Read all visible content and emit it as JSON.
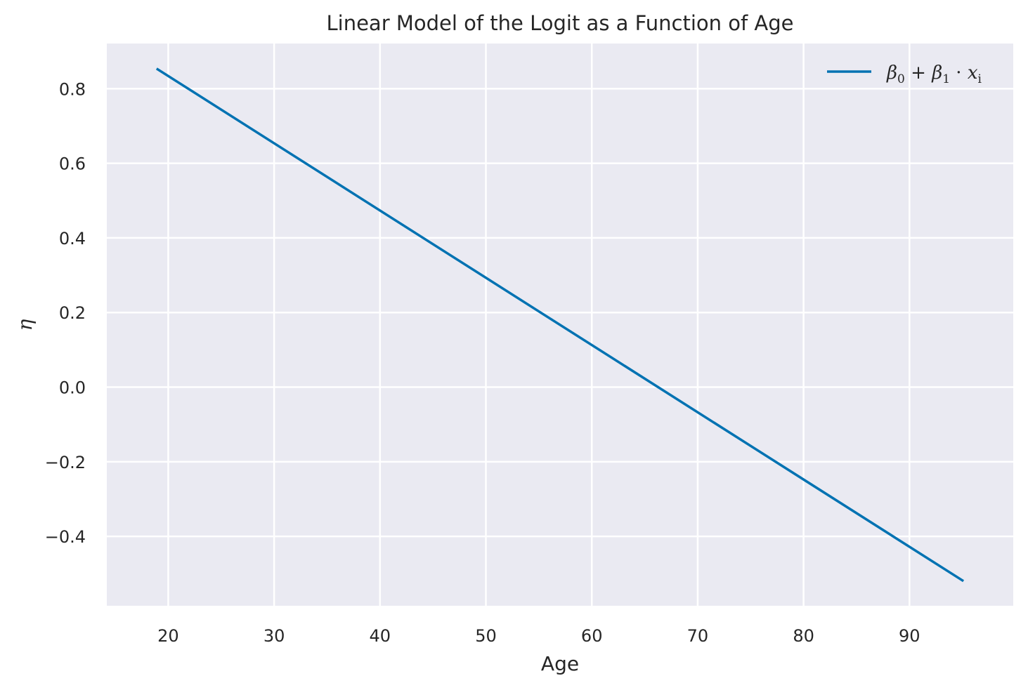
{
  "chart_data": {
    "type": "line",
    "title": "Linear Model of the Logit as a Function of Age",
    "xlabel": "Age",
    "ylabel": "η",
    "xlim": [
      14.2,
      99.8
    ],
    "ylim": [
      -0.586,
      0.921
    ],
    "x_ticks": [
      20,
      30,
      40,
      50,
      60,
      70,
      80,
      90
    ],
    "x_tick_labels": [
      "20",
      "30",
      "40",
      "50",
      "60",
      "70",
      "80",
      "90"
    ],
    "y_ticks": [
      0.8,
      0.6,
      0.4,
      0.2,
      0.0,
      -0.2,
      -0.4
    ],
    "y_tick_labels": [
      "0.8",
      "0.6",
      "0.4",
      "0.2",
      "0.0",
      "−0.2",
      "−0.4"
    ],
    "grid": true,
    "legend_position": "top-right",
    "series": [
      {
        "name": "β0 + β1 · xi",
        "color": "#0072B2",
        "x": [
          19,
          95
        ],
        "y": [
          0.852,
          -0.518
        ]
      }
    ]
  },
  "legend": {
    "beta": "β",
    "sub0": "0",
    "plus": " + ",
    "sub1": "1",
    "dot": " · ",
    "x": "x",
    "subi": "i"
  },
  "colors": {
    "plot_background": "#EAEAF2",
    "grid": "#FFFFFF",
    "line": "#0072B2",
    "text": "#262626"
  }
}
